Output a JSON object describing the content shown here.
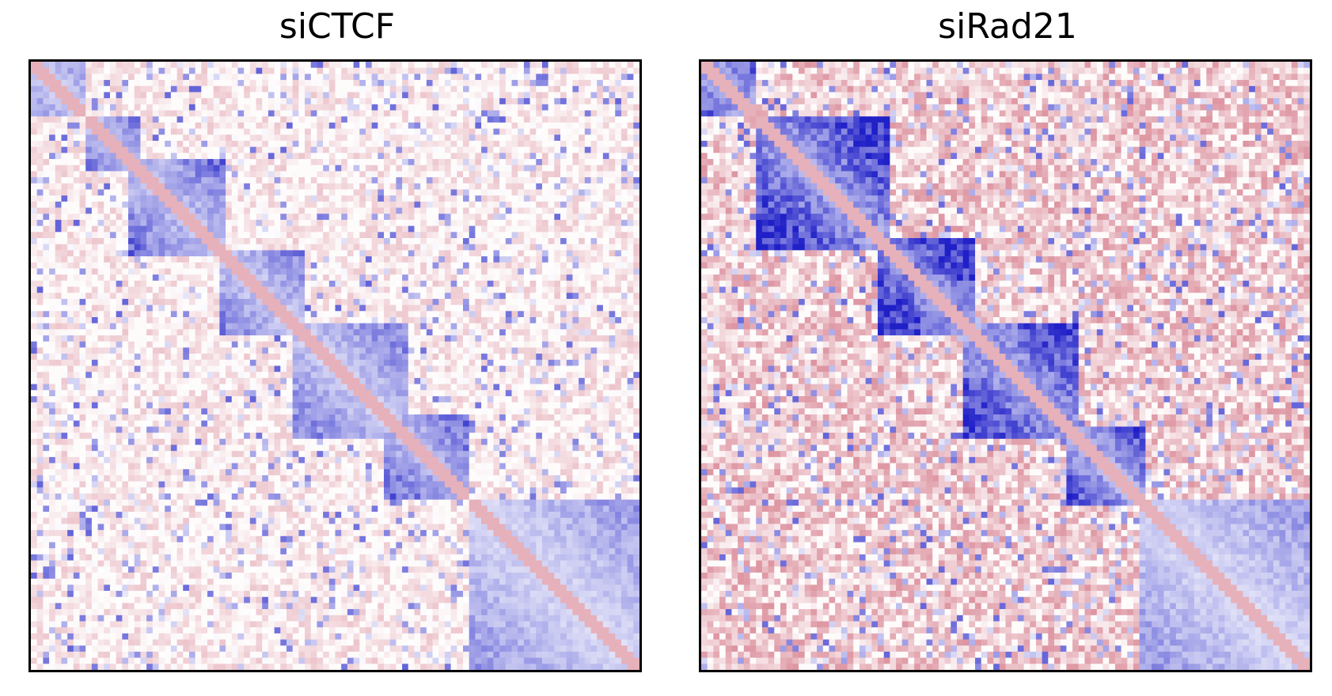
{
  "chart_data": [
    {
      "type": "heatmap",
      "title": "siCTCF",
      "colormap": {
        "low": "#2020c8",
        "mid": "#ffffff",
        "high": "#b8203a"
      },
      "pattern": "diagonal-domains",
      "domains": [
        {
          "start": 0.0,
          "end": 0.09,
          "level": -0.35
        },
        {
          "start": 0.09,
          "end": 0.175,
          "level": -0.45
        },
        {
          "start": 0.16,
          "end": 0.32,
          "level": -0.5
        },
        {
          "start": 0.31,
          "end": 0.45,
          "level": -0.45
        },
        {
          "start": 0.43,
          "end": 0.62,
          "level": -0.45
        },
        {
          "start": 0.58,
          "end": 0.72,
          "level": -0.55
        },
        {
          "start": 0.72,
          "end": 1.0,
          "level": -0.35
        }
      ],
      "background_level": 0.35
    },
    {
      "type": "heatmap",
      "title": "siRad21",
      "colormap": {
        "low": "#2020c8",
        "mid": "#ffffff",
        "high": "#b8203a"
      },
      "pattern": "diagonal-domains",
      "domains": [
        {
          "start": 0.0,
          "end": 0.09,
          "level": -0.6
        },
        {
          "start": 0.09,
          "end": 0.31,
          "level": -0.8
        },
        {
          "start": 0.29,
          "end": 0.45,
          "level": -0.85
        },
        {
          "start": 0.43,
          "end": 0.62,
          "level": -0.75
        },
        {
          "start": 0.6,
          "end": 0.73,
          "level": -0.65
        },
        {
          "start": 0.72,
          "end": 1.0,
          "level": -0.35
        }
      ],
      "background_level": 0.5
    }
  ]
}
